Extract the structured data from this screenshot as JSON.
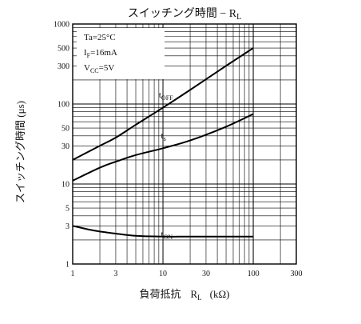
{
  "chart_data": {
    "type": "line",
    "title": "スイッチング時間 − R",
    "title_subscript": "L",
    "xlabel_prefix": "負荷抵抗",
    "xlabel_symbol": "R",
    "xlabel_subscript": "L",
    "xlabel_unit": "(kΩ)",
    "ylabel": "スイッチング時間 (μs)",
    "x_scale": "log",
    "y_scale": "log",
    "xlim": [
      1,
      300
    ],
    "ylim": [
      1,
      1000
    ],
    "x_ticks": [
      {
        "value": 1,
        "label": "1"
      },
      {
        "value": 3,
        "label": "3"
      },
      {
        "value": 10,
        "label": "10"
      },
      {
        "value": 30,
        "label": "30"
      },
      {
        "value": 100,
        "label": "100"
      },
      {
        "value": 300,
        "label": "300"
      }
    ],
    "y_ticks": [
      {
        "value": 1,
        "label": "1"
      },
      {
        "value": 3,
        "label": "3"
      },
      {
        "value": 5,
        "label": "5"
      },
      {
        "value": 10,
        "label": "10"
      },
      {
        "value": 30,
        "label": "30"
      },
      {
        "value": 50,
        "label": "50"
      },
      {
        "value": 100,
        "label": "100"
      },
      {
        "value": 300,
        "label": "300"
      },
      {
        "value": 500,
        "label": "500"
      },
      {
        "value": 1000,
        "label": "1000"
      }
    ],
    "grid": true,
    "conditions": [
      {
        "main": "Ta=25°C",
        "sub": "",
        "tail": ""
      },
      {
        "main": "I",
        "sub": "F",
        "tail": "=16mA"
      },
      {
        "main": "V",
        "sub": "CC",
        "tail": "=5V"
      }
    ],
    "series": [
      {
        "name": "t",
        "name_sub": "OFF",
        "label_at": {
          "x": 9,
          "y": 120
        },
        "points": [
          [
            1,
            20
          ],
          [
            2,
            30
          ],
          [
            3,
            38
          ],
          [
            5,
            55
          ],
          [
            10,
            90
          ],
          [
            20,
            150
          ],
          [
            50,
            300
          ],
          [
            100,
            500
          ]
        ]
      },
      {
        "name": "t",
        "name_sub": "s",
        "label_at": {
          "x": 9.5,
          "y": 37
        },
        "points": [
          [
            1,
            11
          ],
          [
            2,
            16
          ],
          [
            3,
            19
          ],
          [
            5,
            23
          ],
          [
            10,
            28
          ],
          [
            20,
            35
          ],
          [
            50,
            52
          ],
          [
            100,
            75
          ]
        ]
      },
      {
        "name": "t",
        "name_sub": "ON",
        "label_at": {
          "x": 9.5,
          "y": 2.2
        },
        "points": [
          [
            1,
            3
          ],
          [
            1.5,
            2.7
          ],
          [
            2,
            2.55
          ],
          [
            3,
            2.4
          ],
          [
            5,
            2.25
          ],
          [
            10,
            2.2
          ],
          [
            20,
            2.2
          ],
          [
            50,
            2.2
          ],
          [
            100,
            2.2
          ]
        ]
      }
    ]
  }
}
